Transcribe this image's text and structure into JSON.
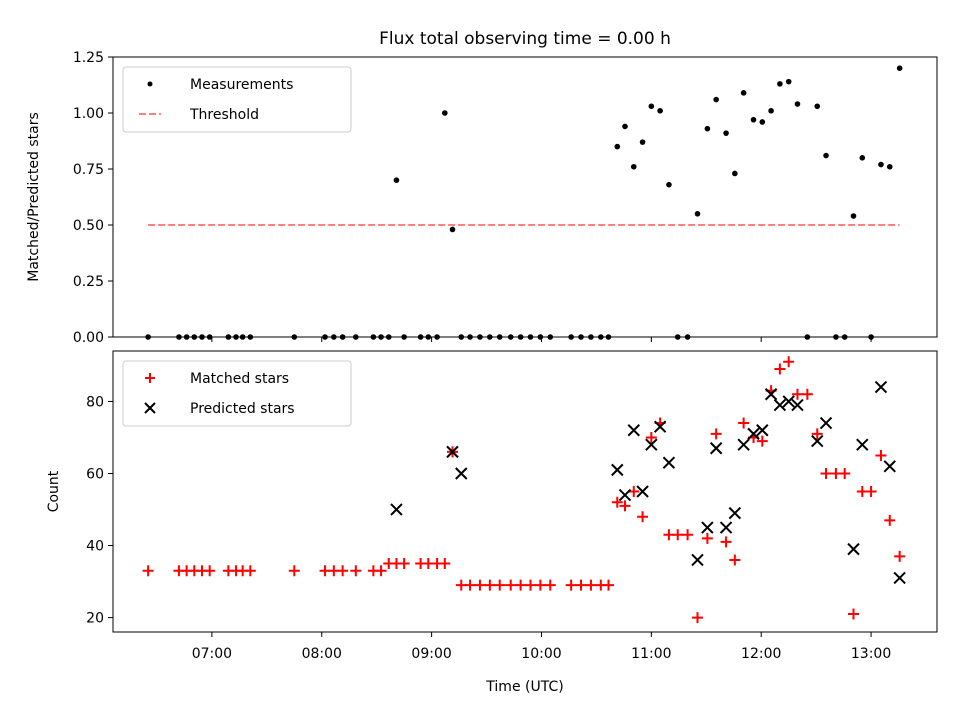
{
  "chart_data": [
    {
      "type": "scatter",
      "title": "Flux total observing time = 0.00 h",
      "ylabel": "Matched/Predicted stars",
      "ylim": [
        0,
        1.25
      ],
      "yticks": [
        0.0,
        0.25,
        0.5,
        0.75,
        1.0,
        1.25
      ],
      "ytick_labels": [
        "0.00",
        "0.25",
        "0.50",
        "0.75",
        "1.00",
        "1.25"
      ],
      "xlim": [
        6.1,
        13.6
      ],
      "legend_position": "top-left",
      "series": [
        {
          "name": "Measurements",
          "marker": "dot",
          "color": "#000000",
          "x": [
            6.42,
            6.7,
            6.77,
            6.84,
            6.91,
            6.98,
            7.15,
            7.22,
            7.28,
            7.35,
            7.75,
            8.03,
            8.11,
            8.19,
            8.31,
            8.47,
            8.54,
            8.61,
            8.68,
            8.75,
            8.9,
            8.97,
            9.05,
            9.12,
            9.19,
            9.27,
            9.35,
            9.44,
            9.53,
            9.62,
            9.72,
            9.81,
            9.9,
            9.99,
            10.08,
            10.27,
            10.36,
            10.45,
            10.54,
            10.61,
            10.69,
            10.76,
            10.84,
            10.92,
            11.0,
            11.08,
            11.16,
            11.24,
            11.33,
            11.42,
            11.51,
            11.59,
            11.68,
            11.76,
            11.84,
            11.93,
            12.01,
            12.09,
            12.17,
            12.25,
            12.33,
            12.42,
            12.51,
            12.59,
            12.68,
            12.76,
            12.84,
            12.92,
            13.0,
            13.09,
            13.17,
            13.26
          ],
          "y": [
            0,
            0,
            0,
            0,
            0,
            0,
            0,
            0,
            0,
            0,
            0,
            0,
            0,
            0,
            0,
            0,
            0,
            0,
            0.7,
            0,
            0,
            0,
            0,
            1.0,
            0.48,
            0,
            0,
            0,
            0,
            0,
            0,
            0,
            0,
            0,
            0,
            0,
            0,
            0,
            0,
            0,
            0.85,
            0.94,
            0.76,
            0.87,
            1.03,
            1.01,
            0.68,
            0,
            0,
            0.55,
            0.93,
            1.06,
            0.91,
            0.73,
            1.09,
            0.97,
            0.96,
            1.01,
            1.13,
            1.14,
            1.04,
            0,
            1.03,
            0.81,
            0,
            0,
            0.54,
            0.8,
            0,
            0.77,
            0.76,
            1.2
          ]
        },
        {
          "name": "Threshold",
          "type": "line",
          "style": "dashed",
          "color": "#ff7f7f",
          "x": [
            6.42,
            13.26
          ],
          "y": [
            0.5,
            0.5
          ]
        }
      ]
    },
    {
      "type": "scatter",
      "xlabel": "Time (UTC)",
      "ylabel": "Count",
      "ylim": [
        16,
        94
      ],
      "yticks": [
        20,
        40,
        60,
        80
      ],
      "ytick_labels": [
        "20",
        "40",
        "60",
        "80"
      ],
      "xlim": [
        6.1,
        13.6
      ],
      "xticks": [
        7,
        8,
        9,
        10,
        11,
        12,
        13
      ],
      "xtick_labels": [
        "07:00",
        "08:00",
        "09:00",
        "10:00",
        "11:00",
        "12:00",
        "13:00"
      ],
      "legend_position": "top-left",
      "series": [
        {
          "name": "Matched stars",
          "marker": "plus",
          "color": "#ff0000",
          "x": [
            6.42,
            6.7,
            6.77,
            6.84,
            6.91,
            6.98,
            7.15,
            7.22,
            7.28,
            7.35,
            7.75,
            8.03,
            8.11,
            8.19,
            8.31,
            8.47,
            8.54,
            8.61,
            8.68,
            8.75,
            8.9,
            8.97,
            9.05,
            9.12,
            9.19,
            9.27,
            9.35,
            9.44,
            9.53,
            9.62,
            9.72,
            9.81,
            9.9,
            9.99,
            10.08,
            10.27,
            10.36,
            10.45,
            10.54,
            10.61,
            10.69,
            10.76,
            10.84,
            10.92,
            11.0,
            11.08,
            11.16,
            11.24,
            11.33,
            11.42,
            11.51,
            11.59,
            11.68,
            11.76,
            11.84,
            11.93,
            12.01,
            12.09,
            12.17,
            12.25,
            12.33,
            12.42,
            12.51,
            12.59,
            12.68,
            12.76,
            12.84,
            12.92,
            13.0,
            13.09,
            13.17,
            13.26
          ],
          "y": [
            33,
            33,
            33,
            33,
            33,
            33,
            33,
            33,
            33,
            33,
            33,
            33,
            33,
            33,
            33,
            33,
            33,
            35,
            35,
            35,
            35,
            35,
            35,
            35,
            66,
            29,
            29,
            29,
            29,
            29,
            29,
            29,
            29,
            29,
            29,
            29,
            29,
            29,
            29,
            29,
            52,
            51,
            55,
            48,
            70,
            74,
            43,
            43,
            43,
            20,
            42,
            71,
            41,
            36,
            74,
            70,
            69,
            83,
            89,
            91,
            82,
            82,
            71,
            60,
            60,
            60,
            21,
            55,
            55,
            65,
            47,
            37
          ]
        },
        {
          "name": "Predicted stars",
          "marker": "x",
          "color": "#000000",
          "x": [
            8.68,
            9.19,
            9.27,
            10.69,
            10.76,
            10.84,
            10.92,
            11.0,
            11.08,
            11.16,
            11.42,
            11.51,
            11.59,
            11.68,
            11.76,
            11.84,
            11.93,
            12.01,
            12.09,
            12.17,
            12.25,
            12.33,
            12.51,
            12.59,
            12.84,
            12.92,
            13.09,
            13.17,
            13.26
          ],
          "y": [
            50,
            66,
            60,
            61,
            54,
            72,
            55,
            68,
            73,
            63,
            36,
            45,
            67,
            45,
            49,
            68,
            71,
            72,
            82,
            79,
            80,
            79,
            69,
            74,
            39,
            68,
            84,
            62,
            31
          ]
        }
      ]
    }
  ]
}
